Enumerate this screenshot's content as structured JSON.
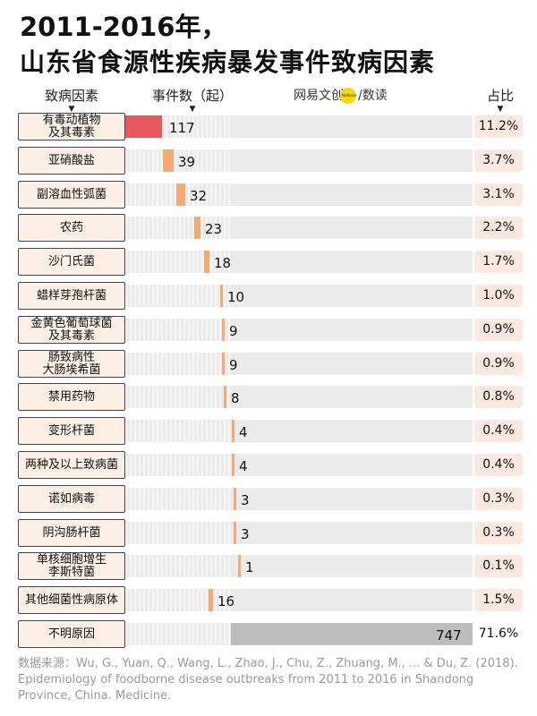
{
  "title": {
    "line1": "2011-2016年，",
    "line2": "山东省食源性疾病暴发事件致病因素"
  },
  "headers": {
    "cause": "致病因素",
    "count": "事件数（起）",
    "ratio": "占比",
    "arrow": "▼"
  },
  "brand": {
    "part1": "网易",
    "part2": "文创",
    "part3": "/数读"
  },
  "chart_data": {
    "type": "bar",
    "xlabel": "",
    "ylabel": "",
    "categories": [
      "有毒动植物\n及其毒素",
      "亚硝酸盐",
      "副溶血性弧菌",
      "农药",
      "沙门氏菌",
      "蜡样芽孢杆菌",
      "金黄色葡萄球菌\n及其毒素",
      "肠致病性\n大肠埃希菌",
      "禁用药物",
      "变形杆菌",
      "两种及以上致病菌",
      "诺如病毒",
      "阴沟肠杆菌",
      "单核细胞增生\n李斯特菌",
      "其他细菌性病原体",
      "不明原因"
    ],
    "values": [
      117,
      39,
      32,
      23,
      18,
      10,
      9,
      9,
      8,
      4,
      4,
      3,
      3,
      1,
      16,
      747
    ],
    "shares": [
      "11.2%",
      "3.7%",
      "3.1%",
      "2.2%",
      "1.7%",
      "1.0%",
      "0.9%",
      "0.9%",
      "0.8%",
      "0.4%",
      "0.4%",
      "0.3%",
      "0.3%",
      "0.1%",
      "1.5%",
      "71.6%"
    ],
    "colors": {
      "first": "#e7585e",
      "default": "#f5aa74",
      "unknown": "#bdbdbd",
      "track": "#ebebeb"
    }
  },
  "source": "数据来源：Wu, G., Yuan, Q., Wang, L., Zhao, J., Chu, Z., Zhuang, M., ... & Du, Z. (2018). Epidemiology of foodborne disease outbreaks from 2011 to 2016 in Shandong Province, China. Medicine."
}
